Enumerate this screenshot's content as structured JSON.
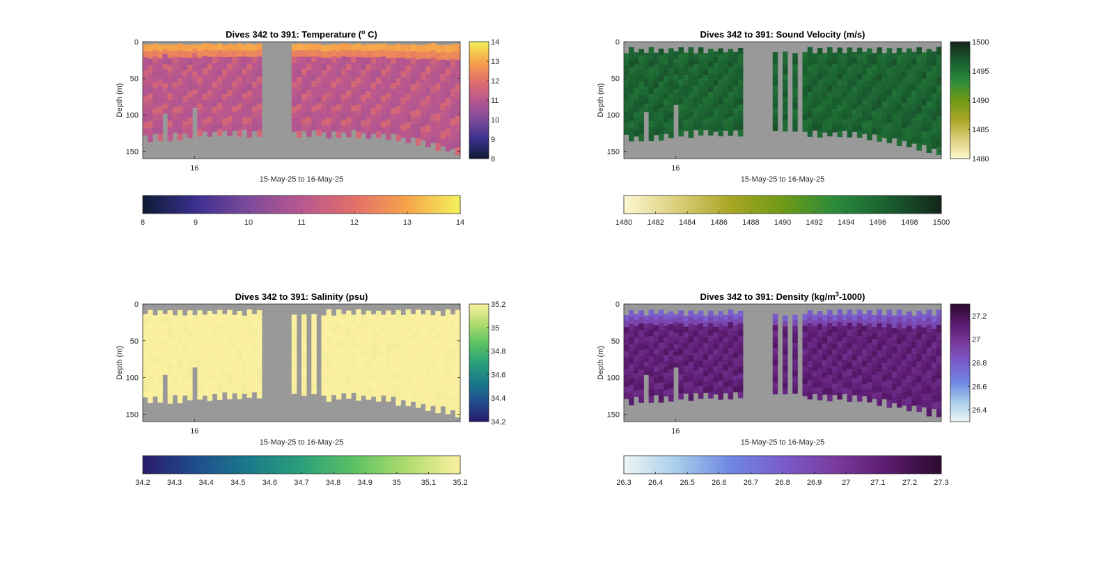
{
  "chart_data": [
    {
      "type": "heatmap",
      "title": "Dives 342 to 391: Temperature (",
      "title_sup": "o",
      "title_tail": " C)",
      "ylabel": "Depth (m)",
      "xlabel": "15-May-25 to 16-May-25",
      "x_tick_labels": [
        "16"
      ],
      "y_ticks": [
        0,
        50,
        100,
        150
      ],
      "ylim": [
        0,
        160
      ],
      "variable": "temperature",
      "colorbar_range": [
        8,
        14
      ],
      "colorbar_ticks": [
        8,
        9,
        10,
        11,
        12,
        13,
        14
      ],
      "colormap": [
        "#0d1b33",
        "#3b2f8f",
        "#7c4a9a",
        "#b8578f",
        "#e26f6a",
        "#f7a44a",
        "#f2f35b"
      ],
      "surface_band_values": [
        13.0,
        12.4
      ],
      "interior_values": [
        11.6,
        11.1,
        11.0,
        10.9
      ],
      "gap_dives": "no data (dives missing)",
      "bottom_depth_profile": [
        138,
        137,
        135,
        133,
        132,
        131,
        131,
        130,
        130,
        133,
        133,
        133,
        132,
        134,
        136,
        140,
        146,
        150,
        156
      ]
    },
    {
      "type": "heatmap",
      "title": "Dives 342 to 391: Sound Velocity (m/s)",
      "ylabel": "Depth (m)",
      "xlabel": "15-May-25 to 16-May-25",
      "x_tick_labels": [
        "16"
      ],
      "y_ticks": [
        0,
        50,
        100,
        150
      ],
      "ylim": [
        0,
        160
      ],
      "variable": "sound velocity",
      "colorbar_range": [
        1480,
        1500
      ],
      "colorbar_ticks": [
        1480,
        1482,
        1484,
        1486,
        1488,
        1490,
        1492,
        1494,
        1496,
        1498,
        1500
      ],
      "side_colorbar_ticks": [
        1480,
        1485,
        1490,
        1495,
        1500
      ],
      "colormap": [
        "#fdf7d0",
        "#dbcf7c",
        "#a9a624",
        "#6f9a16",
        "#2a8a3c",
        "#1a5e30",
        "#13251a"
      ],
      "interior_values": [
        1495.5,
        1496.0,
        1496.5,
        1497.0
      ]
    },
    {
      "type": "heatmap",
      "title": "Dives 342 to 391: Salinity (psu)",
      "ylabel": "Depth (m)",
      "xlabel": "15-May-25 to 16-May-25",
      "x_tick_labels": [
        "16"
      ],
      "y_ticks": [
        0,
        50,
        100,
        150
      ],
      "ylim": [
        0,
        160
      ],
      "variable": "salinity",
      "colorbar_range": [
        34.2,
        35.2
      ],
      "colorbar_ticks": [
        "34.2",
        "34.3",
        "34.4",
        "34.5",
        "34.6",
        "34.7",
        "34.8",
        "34.9",
        "35",
        "35.1",
        "35.2"
      ],
      "side_colorbar_ticks": [
        "34.2",
        "34.4",
        "34.6",
        "34.8",
        "35",
        "35.2"
      ],
      "colormap": [
        "#2a1a6b",
        "#1f4d8f",
        "#1a7a8a",
        "#2aa07a",
        "#5cc263",
        "#b0dc6e",
        "#fbf0a0"
      ],
      "interior_values": [
        35.2
      ]
    },
    {
      "type": "heatmap",
      "title": "Dives 342 to 391: Density (kg/m",
      "title_sup": "3",
      "title_tail": "-1000)",
      "ylabel": "Depth (m)",
      "xlabel": "15-May-25 to 16-May-25",
      "x_tick_labels": [
        "16"
      ],
      "y_ticks": [
        0,
        50,
        100,
        150
      ],
      "ylim": [
        0,
        160
      ],
      "variable": "density",
      "colorbar_range": [
        26.3,
        27.3
      ],
      "colorbar_ticks": [
        "26.3",
        "26.4",
        "26.5",
        "26.6",
        "26.7",
        "26.8",
        "26.9",
        "27",
        "27.1",
        "27.2",
        "27.3"
      ],
      "side_colorbar_ticks": [
        "26.4",
        "26.6",
        "26.8",
        "27",
        "27.2"
      ],
      "colormap": [
        "#eef6f6",
        "#a8cdea",
        "#6f88e4",
        "#7a5dcc",
        "#7a3a9e",
        "#5a1a6e",
        "#2c0a2e"
      ],
      "surface_band_values": [
        26.8,
        26.9
      ],
      "interior_values": [
        27.05,
        27.1,
        27.15
      ]
    }
  ],
  "colors": {
    "nodata": "#999999",
    "axes": "#262626",
    "background": "#ffffff"
  }
}
